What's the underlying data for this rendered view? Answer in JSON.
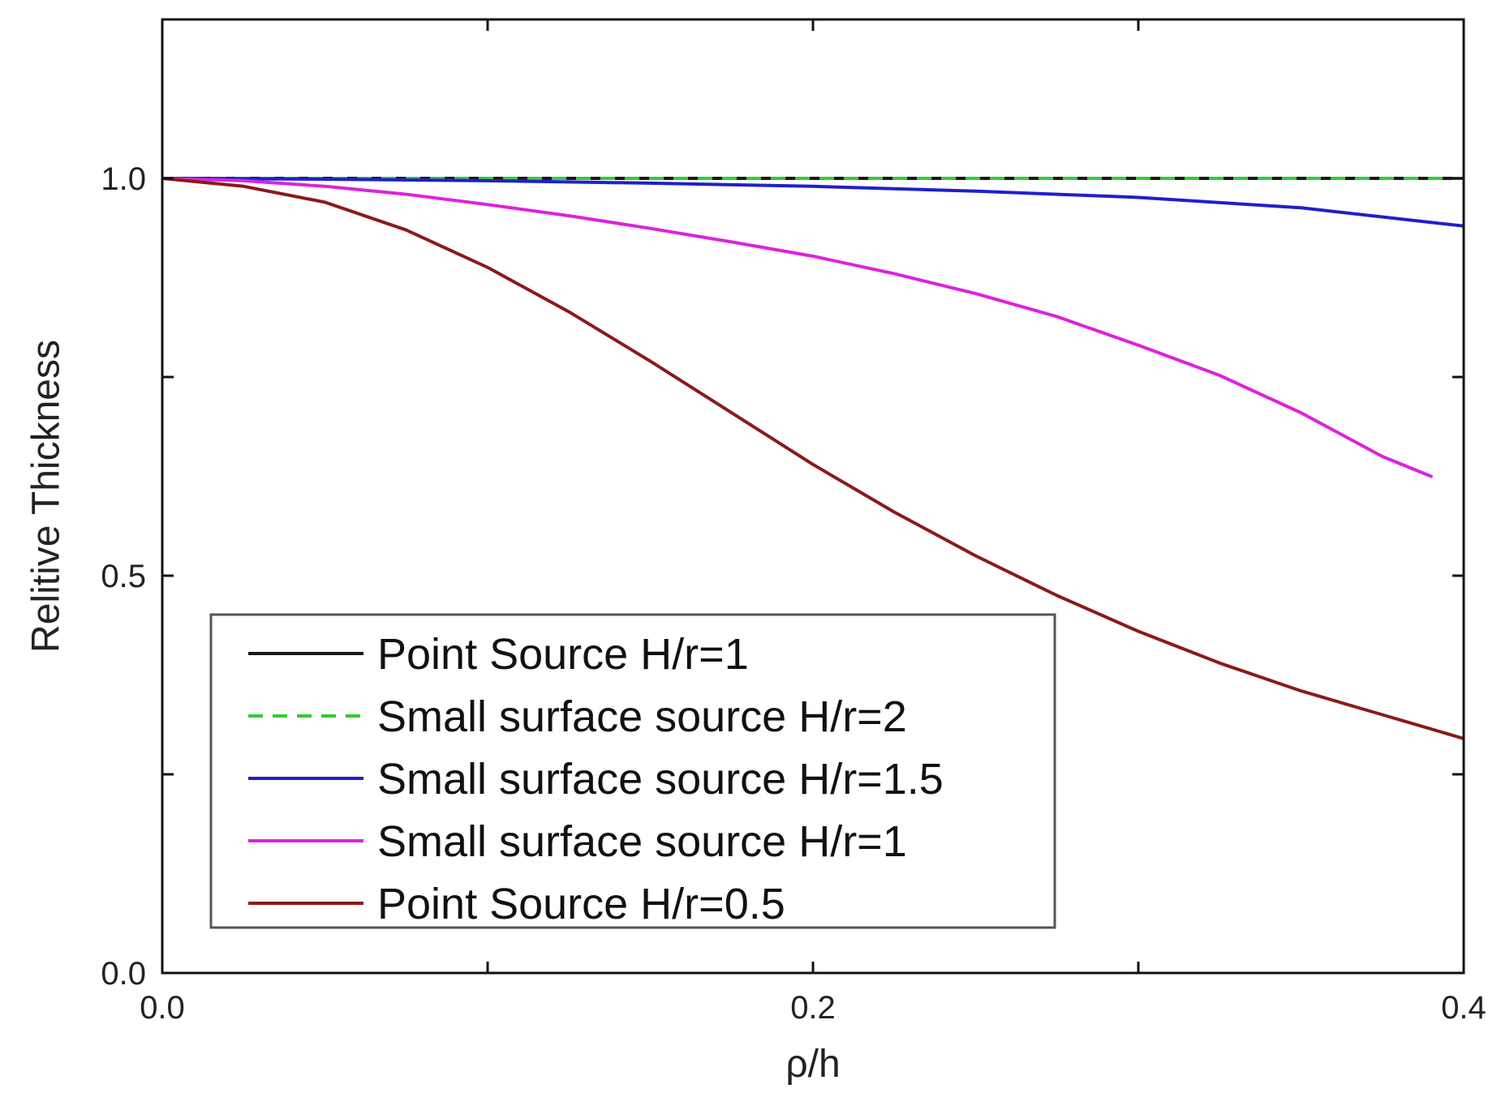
{
  "chart_data": {
    "type": "line",
    "title": "",
    "xlabel": "ρ/h",
    "ylabel": "Relitive Thickness",
    "xlim": [
      0.0,
      0.4
    ],
    "ylim": [
      0.0,
      1.2
    ],
    "x_ticks": [
      {
        "value": 0.0,
        "label": "0.0"
      },
      {
        "value": 0.1,
        "label": ""
      },
      {
        "value": 0.2,
        "label": "0.2"
      },
      {
        "value": 0.3,
        "label": ""
      },
      {
        "value": 0.4,
        "label": "0.4"
      }
    ],
    "y_ticks": [
      {
        "value": 0.0,
        "label": "0.0"
      },
      {
        "value": 0.25,
        "label": ""
      },
      {
        "value": 0.5,
        "label": "0.5"
      },
      {
        "value": 0.75,
        "label": ""
      },
      {
        "value": 1.0,
        "label": "1.0"
      }
    ],
    "grid": false,
    "legend_position": "bottom-left",
    "series": [
      {
        "name": "Point Source H/r=1",
        "color": "#1a1a1a",
        "dash": "solid",
        "x": [
          0.0,
          0.1,
          0.2,
          0.3,
          0.4
        ],
        "y": [
          1.0,
          1.0,
          1.0,
          1.0,
          1.0
        ]
      },
      {
        "name": "Small surface source H/r=2",
        "color": "#33cc33",
        "dash": "dashed",
        "x": [
          0.0,
          0.1,
          0.2,
          0.3,
          0.4
        ],
        "y": [
          1.0,
          1.0,
          1.0,
          1.0,
          1.0
        ]
      },
      {
        "name": "Small surface source H/r=1.5",
        "color": "#1f1fcc",
        "dash": "solid",
        "x": [
          0.0,
          0.05,
          0.1,
          0.15,
          0.2,
          0.25,
          0.3,
          0.35,
          0.4
        ],
        "y": [
          1.0,
          0.999,
          0.997,
          0.994,
          0.99,
          0.984,
          0.976,
          0.963,
          0.94
        ]
      },
      {
        "name": "Small surface source H/r=1",
        "color": "#dd22dd",
        "dash": "solid",
        "x": [
          0.0,
          0.025,
          0.05,
          0.075,
          0.1,
          0.125,
          0.15,
          0.175,
          0.2,
          0.225,
          0.25,
          0.275,
          0.3,
          0.325,
          0.35,
          0.375,
          0.39
        ],
        "y": [
          1.0,
          0.997,
          0.99,
          0.98,
          0.967,
          0.953,
          0.937,
          0.92,
          0.902,
          0.88,
          0.855,
          0.826,
          0.79,
          0.752,
          0.705,
          0.65,
          0.625
        ]
      },
      {
        "name": "Point Source H/r=0.5",
        "color": "#8b1a1a",
        "dash": "solid",
        "x": [
          0.0,
          0.025,
          0.05,
          0.075,
          0.1,
          0.125,
          0.15,
          0.175,
          0.2,
          0.225,
          0.25,
          0.275,
          0.3,
          0.325,
          0.35,
          0.375,
          0.4
        ],
        "y": [
          1.0,
          0.99,
          0.97,
          0.935,
          0.888,
          0.832,
          0.77,
          0.705,
          0.64,
          0.58,
          0.525,
          0.475,
          0.43,
          0.39,
          0.355,
          0.325,
          0.295
        ]
      }
    ]
  }
}
